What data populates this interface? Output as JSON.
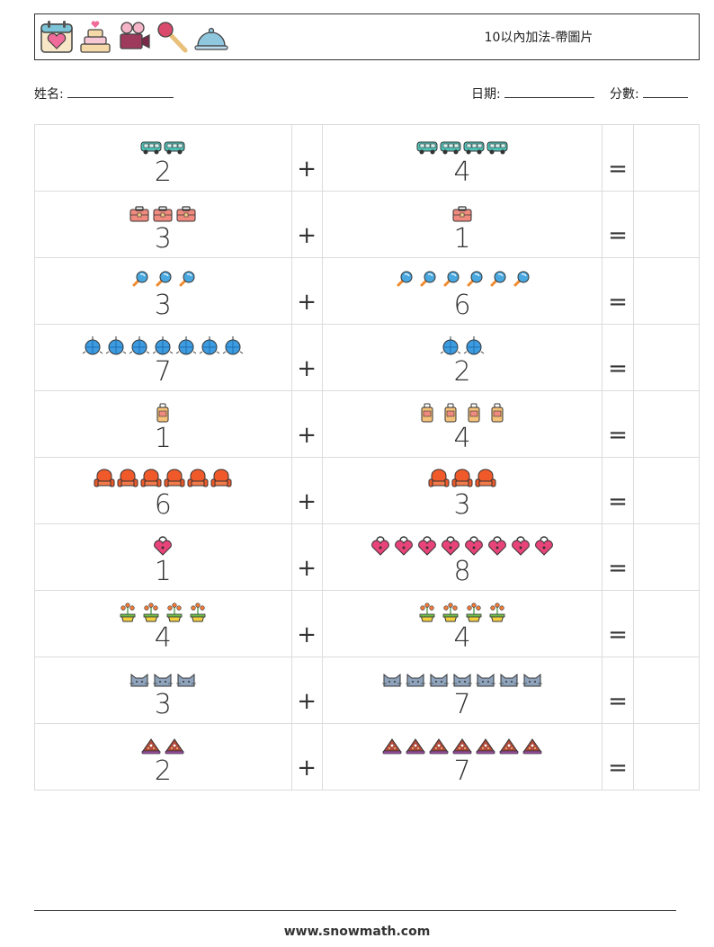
{
  "header": {
    "title": "10以內加法-帶圖片",
    "icons": [
      "calendar-heart-icon",
      "wedding-cake-icon",
      "video-camera-icon",
      "microphone-icon",
      "food-cloche-icon"
    ]
  },
  "fields": {
    "name_label": "姓名:",
    "date_label": "日期:",
    "score_label": "分數:"
  },
  "operators": {
    "plus": "+",
    "equals": "="
  },
  "problems": [
    {
      "a": 2,
      "b": 4,
      "icon": "van-icon"
    },
    {
      "a": 3,
      "b": 1,
      "icon": "briefcase-icon"
    },
    {
      "a": 3,
      "b": 6,
      "icon": "magnifier-icon"
    },
    {
      "a": 7,
      "b": 2,
      "icon": "disco-ball-icon"
    },
    {
      "a": 1,
      "b": 4,
      "icon": "suitcase-icon"
    },
    {
      "a": 6,
      "b": 3,
      "icon": "armchair-icon"
    },
    {
      "a": 1,
      "b": 8,
      "icon": "heart-lock-icon"
    },
    {
      "a": 4,
      "b": 4,
      "icon": "flower-pot-icon"
    },
    {
      "a": 3,
      "b": 7,
      "icon": "cat-icon"
    },
    {
      "a": 2,
      "b": 7,
      "icon": "cake-slice-icon"
    }
  ],
  "footer": {
    "website": "www.snowmath.com"
  }
}
